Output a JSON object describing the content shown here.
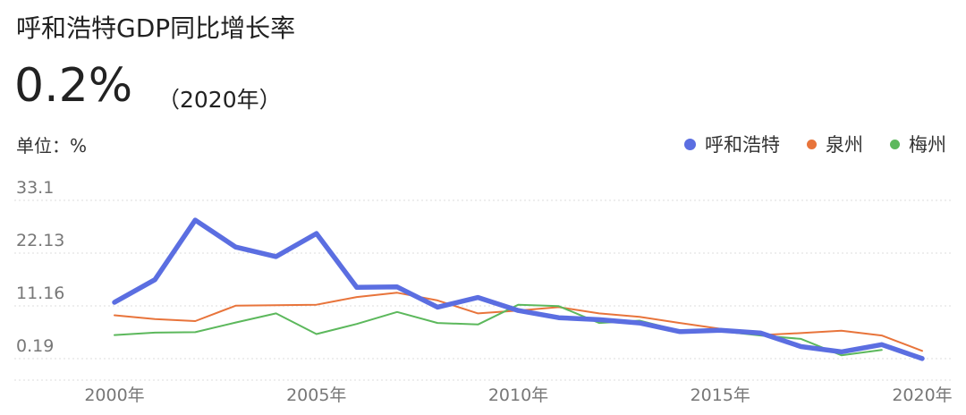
{
  "header": {
    "title": "呼和浩特GDP同比增长率",
    "value": "0.2%",
    "year": "（2020年）",
    "unit": "单位：%"
  },
  "chart_data": {
    "type": "line",
    "x": [
      2000,
      2001,
      2002,
      2003,
      2004,
      2005,
      2006,
      2007,
      2008,
      2009,
      2010,
      2011,
      2012,
      2013,
      2014,
      2015,
      2016,
      2017,
      2018,
      2019,
      2020
    ],
    "x_tick_values": [
      2000,
      2005,
      2010,
      2015,
      2020
    ],
    "x_tick_labels": [
      "2000年",
      "2005年",
      "2010年",
      "2015年",
      "2020年"
    ],
    "y_ticks": [
      0.19,
      11.16,
      22.13,
      33.1
    ],
    "y_tick_labels": [
      "0.19",
      "11.16",
      "22.13",
      "33.1"
    ],
    "ylim": [
      0.19,
      33.1
    ],
    "grid": "horizontal-dotted",
    "legend_position": "top-right",
    "series": [
      {
        "name": "呼和浩特",
        "color": "#5b6ee1",
        "emphasis": true,
        "values": [
          11.9,
          16.6,
          29.0,
          23.4,
          21.4,
          26.2,
          15.0,
          15.1,
          10.9,
          12.9,
          10.2,
          8.7,
          8.3,
          7.6,
          5.8,
          6.1,
          5.5,
          2.7,
          1.6,
          3.1,
          0.2
        ]
      },
      {
        "name": "泉州",
        "color": "#e8743b",
        "emphasis": false,
        "values": [
          9.2,
          8.4,
          8.0,
          11.2,
          11.3,
          11.4,
          13.0,
          13.9,
          12.3,
          9.6,
          10.2,
          10.9,
          9.6,
          8.9,
          7.6,
          6.4,
          5.1,
          5.5,
          6.0,
          5.0,
          1.8
        ]
      },
      {
        "name": "梅州",
        "color": "#5cb85c",
        "emphasis": false,
        "values": [
          5.1,
          5.6,
          5.7,
          7.7,
          9.6,
          5.3,
          7.4,
          9.9,
          7.6,
          7.3,
          11.4,
          11.1,
          7.6,
          8.1,
          6.0,
          5.9,
          5.0,
          4.3,
          0.9,
          2.0,
          null
        ]
      }
    ]
  }
}
